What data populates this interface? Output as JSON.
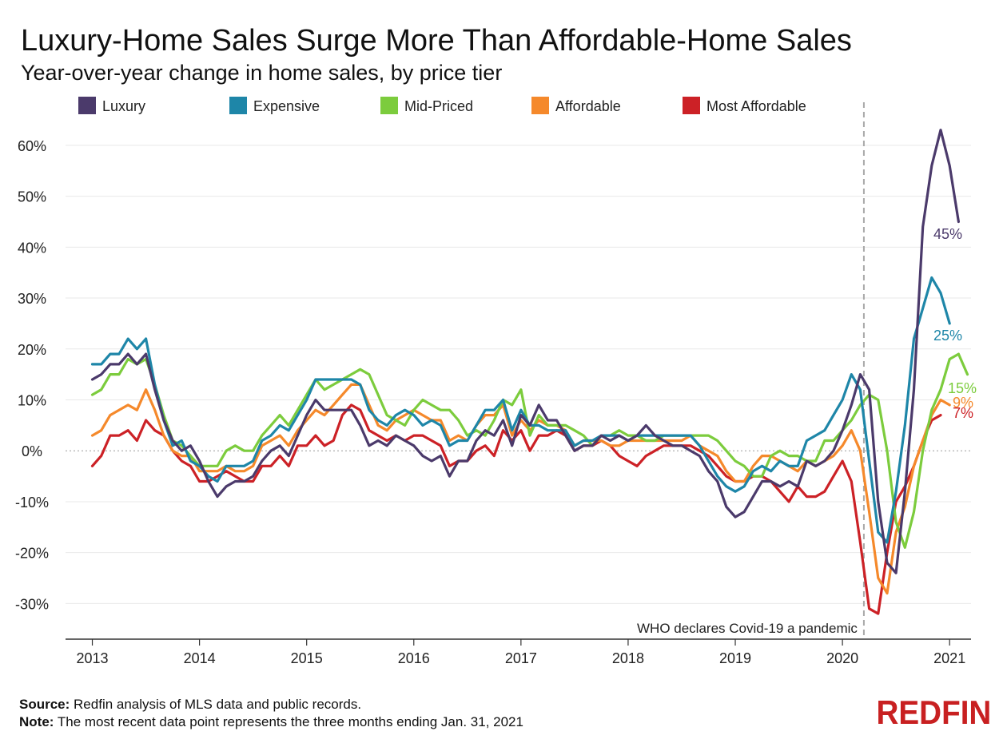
{
  "chart_data": {
    "type": "line",
    "title": "Luxury-Home Sales Surge More Than Affordable-Home Sales",
    "subtitle": "Year-over-year change in home sales, by price tier",
    "y_ticks": [
      "60%",
      "50%",
      "40%",
      "30%",
      "20%",
      "10%",
      "0%",
      "-10%",
      "-20%",
      "-30%"
    ],
    "ylim": [
      -37,
      65
    ],
    "x_ticks": [
      "2013",
      "2014",
      "2015",
      "2016",
      "2017",
      "2018",
      "2019",
      "2020",
      "2021"
    ],
    "xlim": [
      2012.75,
      2021.2
    ],
    "grid": true,
    "legend": "top",
    "annotation": {
      "x": 2020.2,
      "text": "WHO declares Covid-19 a pandemic"
    },
    "x_start": 2013.0,
    "x_step_months": 1,
    "series": [
      {
        "name": "Luxury",
        "color": "#4b3a6b",
        "end_label": "45%",
        "values": [
          14,
          15,
          17,
          17,
          19,
          17,
          19,
          12,
          6,
          2,
          0,
          1,
          -2,
          -6,
          -9,
          -7,
          -6,
          -6,
          -5,
          -2,
          0,
          1,
          -1,
          3,
          7,
          10,
          8,
          8,
          8,
          8,
          5,
          1,
          2,
          1,
          3,
          2,
          1,
          -1,
          -2,
          -1,
          -5,
          -2,
          -2,
          2,
          4,
          3,
          6,
          1,
          7,
          5,
          9,
          6,
          6,
          3,
          0,
          1,
          1,
          3,
          2,
          3,
          2,
          3,
          5,
          3,
          2,
          1,
          1,
          0,
          -1,
          -4,
          -6,
          -11,
          -13,
          -12,
          -9,
          -6,
          -6,
          -7,
          -6,
          -7,
          -2,
          -3,
          -2,
          0,
          4,
          9,
          15,
          12,
          -10,
          -22,
          -24,
          -8,
          12,
          44,
          56,
          63,
          56,
          45
        ]
      },
      {
        "name": "Expensive",
        "color": "#1e86a8",
        "end_label": "25%",
        "values": [
          17,
          17,
          19,
          19,
          22,
          20,
          22,
          13,
          6,
          1,
          2,
          -2,
          -3,
          -5,
          -6,
          -3,
          -3,
          -3,
          -2,
          2,
          3,
          5,
          4,
          7,
          10,
          14,
          14,
          14,
          14,
          14,
          13,
          8,
          6,
          5,
          7,
          8,
          7,
          5,
          6,
          5,
          1,
          2,
          2,
          5,
          8,
          8,
          10,
          4,
          8,
          5,
          5,
          4,
          4,
          4,
          1,
          2,
          2,
          3,
          3,
          3,
          2,
          3,
          3,
          3,
          3,
          3,
          3,
          3,
          1,
          -2,
          -5,
          -7,
          -8,
          -7,
          -4,
          -3,
          -4,
          -2,
          -3,
          -3,
          2,
          3,
          4,
          7,
          10,
          15,
          12,
          -2,
          -16,
          -18,
          -8,
          5,
          22,
          28,
          34,
          31,
          25
        ]
      },
      {
        "name": "Mid-Priced",
        "color": "#7ccc3d",
        "end_label": "15%",
        "values": [
          11,
          12,
          15,
          15,
          18,
          17,
          18,
          13,
          7,
          2,
          1,
          -1,
          -3,
          -3,
          -3,
          0,
          1,
          0,
          0,
          3,
          5,
          7,
          5,
          8,
          11,
          14,
          12,
          13,
          14,
          15,
          16,
          15,
          11,
          7,
          6,
          5,
          8,
          10,
          9,
          8,
          8,
          6,
          3,
          4,
          3,
          6,
          10,
          9,
          12,
          3,
          7,
          5,
          5,
          5,
          4,
          3,
          1,
          3,
          3,
          4,
          3,
          3,
          2,
          2,
          3,
          3,
          3,
          3,
          3,
          3,
          2,
          0,
          -2,
          -3,
          -5,
          -5,
          -1,
          0,
          -1,
          -1,
          -2,
          -2,
          2,
          2,
          4,
          6,
          9,
          11,
          10,
          0,
          -14,
          -19,
          -12,
          0,
          8,
          12,
          18,
          19,
          15
        ]
      },
      {
        "name": "Affordable",
        "color": "#f5892b",
        "end_label": "9%",
        "values": [
          3,
          4,
          7,
          8,
          9,
          8,
          12,
          8,
          3,
          0,
          -1,
          -1,
          -4,
          -4,
          -4,
          -3,
          -4,
          -4,
          -3,
          1,
          2,
          3,
          1,
          4,
          6,
          8,
          7,
          9,
          11,
          13,
          13,
          9,
          5,
          4,
          6,
          7,
          8,
          7,
          6,
          6,
          2,
          3,
          2,
          5,
          7,
          7,
          9,
          3,
          6,
          4,
          6,
          5,
          5,
          4,
          1,
          2,
          2,
          2,
          1,
          1,
          2,
          2,
          2,
          2,
          2,
          2,
          2,
          3,
          1,
          0,
          -1,
          -4,
          -6,
          -6,
          -3,
          -1,
          -1,
          -2,
          -3,
          -4,
          -2,
          -3,
          -2,
          -1,
          1,
          4,
          0,
          -12,
          -25,
          -28,
          -16,
          -11,
          -3,
          2,
          7,
          10,
          9
        ]
      },
      {
        "name": "Most Affordable",
        "color": "#cc2126",
        "end_label": "7%",
        "values": [
          -3,
          -1,
          3,
          3,
          4,
          2,
          6,
          4,
          3,
          0,
          -2,
          -3,
          -6,
          -6,
          -5,
          -4,
          -5,
          -6,
          -6,
          -3,
          -3,
          -1,
          -3,
          1,
          1,
          3,
          1,
          2,
          7,
          9,
          8,
          4,
          3,
          2,
          3,
          2,
          3,
          3,
          2,
          1,
          -3,
          -2,
          -2,
          0,
          1,
          -1,
          4,
          2,
          4,
          0,
          3,
          3,
          4,
          3,
          0,
          1,
          1,
          2,
          1,
          -1,
          -2,
          -3,
          -1,
          0,
          1,
          1,
          1,
          1,
          0,
          -1,
          -3,
          -5,
          -6,
          -6,
          -5,
          -5,
          -6,
          -8,
          -10,
          -7,
          -9,
          -9,
          -8,
          -5,
          -2,
          -6,
          -18,
          -31,
          -32,
          -20,
          -10,
          -7,
          -3,
          2,
          6,
          7
        ]
      }
    ]
  },
  "footer": {
    "source_label": "Source:",
    "source_text": "Redfin analysis of MLS data and public records.",
    "note_label": "Note:",
    "note_text": "The most recent data point represents the three months ending Jan. 31, 2021"
  },
  "logo_text": "REDFIN"
}
